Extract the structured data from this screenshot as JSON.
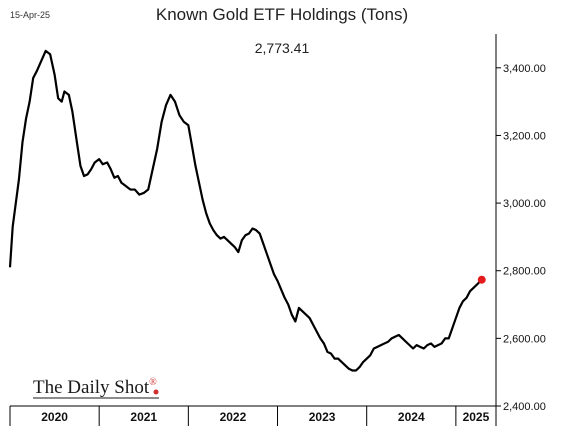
{
  "header": {
    "date_stamp": "15-Apr-25",
    "title": "Known Gold ETF Holdings (Tons)",
    "latest_value": "2,773.41"
  },
  "brand": {
    "name": "The Daily Shot",
    "mark": "®"
  },
  "colors": {
    "line": "#000000",
    "last_point": "#e41a1c",
    "axis": "#000000"
  },
  "chart_data": {
    "type": "line",
    "title": "Known Gold ETF Holdings (Tons)",
    "xlabel": "",
    "ylabel": "",
    "ylim": [
      2400,
      3500
    ],
    "xlim": [
      2020.0,
      2025.45
    ],
    "y_ticks": [
      2400,
      2600,
      2800,
      3000,
      3200,
      3400
    ],
    "y_tick_labels": [
      "2,400.00",
      "2,600.00",
      "2,800.00",
      "3,000.00",
      "3,200.00",
      "3,400.00"
    ],
    "x_categories": [
      "2020",
      "2021",
      "2022",
      "2023",
      "2024",
      "2025"
    ],
    "x_year_bounds": [
      2020.0,
      2021.0,
      2022.0,
      2023.0,
      2024.0,
      2025.0,
      2025.45
    ],
    "grid": false,
    "legend": "none",
    "last_value": 2773.41,
    "series": [
      {
        "x": [
          2020.0,
          2020.03,
          2020.06,
          2020.1,
          2020.14,
          2020.18,
          2020.22,
          2020.26,
          2020.3,
          2020.35,
          2020.4,
          2020.45,
          2020.5,
          2020.54,
          2020.58,
          2020.61,
          2020.66,
          2020.7,
          2020.75,
          2020.79,
          2020.83,
          2020.87,
          2020.91,
          2020.95,
          2021.0,
          2021.04,
          2021.09,
          2021.13,
          2021.17,
          2021.21,
          2021.25,
          2021.3,
          2021.35,
          2021.4,
          2021.45,
          2021.5,
          2021.55,
          2021.6,
          2021.65,
          2021.7,
          2021.75,
          2021.8,
          2021.85,
          2021.9,
          2021.95,
          2022.0,
          2022.04,
          2022.08,
          2022.12,
          2022.16,
          2022.2,
          2022.24,
          2022.28,
          2022.32,
          2022.36,
          2022.4,
          2022.44,
          2022.48,
          2022.52,
          2022.56,
          2022.6,
          2022.64,
          2022.68,
          2022.72,
          2022.76,
          2022.8,
          2022.84,
          2022.88,
          2022.92,
          2022.96,
          2023.0,
          2023.04,
          2023.08,
          2023.12,
          2023.16,
          2023.2,
          2023.24,
          2023.28,
          2023.32,
          2023.36,
          2023.4,
          2023.44,
          2023.48,
          2023.52,
          2023.56,
          2023.6,
          2023.64,
          2023.68,
          2023.72,
          2023.76,
          2023.8,
          2023.84,
          2023.88,
          2023.92,
          2023.96,
          2024.0,
          2024.04,
          2024.08,
          2024.12,
          2024.16,
          2024.2,
          2024.24,
          2024.28,
          2024.32,
          2024.36,
          2024.4,
          2024.44,
          2024.48,
          2024.52,
          2024.56,
          2024.6,
          2024.64,
          2024.68,
          2024.72,
          2024.76,
          2024.8,
          2024.84,
          2024.88,
          2024.92,
          2024.96,
          2025.0,
          2025.04,
          2025.08,
          2025.12,
          2025.16,
          2025.2,
          2025.24,
          2025.29
        ],
        "y": [
          2810,
          2930,
          2990,
          3070,
          3180,
          3250,
          3300,
          3370,
          3390,
          3420,
          3450,
          3440,
          3380,
          3310,
          3300,
          3330,
          3320,
          3270,
          3180,
          3110,
          3080,
          3085,
          3100,
          3120,
          3130,
          3115,
          3120,
          3100,
          3075,
          3080,
          3060,
          3050,
          3040,
          3040,
          3025,
          3030,
          3040,
          3100,
          3160,
          3240,
          3290,
          3320,
          3300,
          3260,
          3240,
          3230,
          3170,
          3110,
          3060,
          3010,
          2970,
          2940,
          2920,
          2905,
          2895,
          2900,
          2890,
          2880,
          2870,
          2855,
          2890,
          2905,
          2910,
          2925,
          2920,
          2910,
          2880,
          2850,
          2820,
          2790,
          2770,
          2745,
          2720,
          2700,
          2670,
          2650,
          2690,
          2680,
          2670,
          2660,
          2640,
          2620,
          2600,
          2585,
          2560,
          2555,
          2540,
          2540,
          2530,
          2520,
          2510,
          2505,
          2505,
          2515,
          2530,
          2540,
          2550,
          2570,
          2575,
          2580,
          2585,
          2590,
          2600,
          2605,
          2610,
          2600,
          2590,
          2580,
          2570,
          2580,
          2575,
          2570,
          2580,
          2585,
          2575,
          2580,
          2585,
          2600,
          2600,
          2630,
          2660,
          2690,
          2710,
          2720,
          2740,
          2750,
          2760,
          2773.41
        ]
      }
    ]
  }
}
